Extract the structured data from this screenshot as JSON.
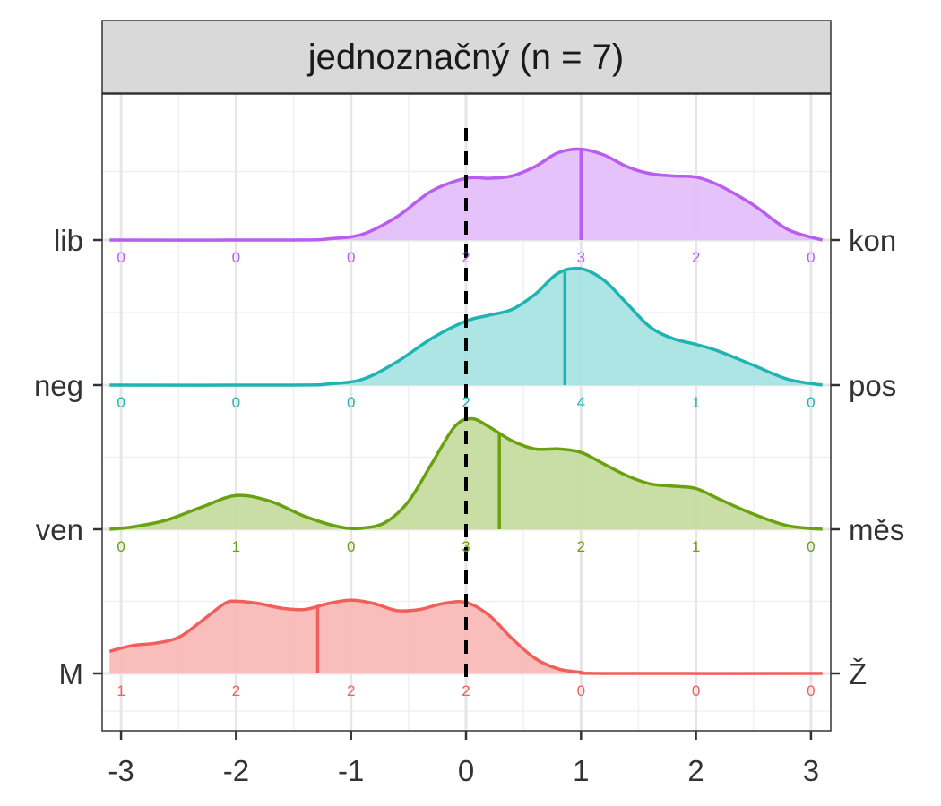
{
  "chart_data": {
    "type": "ridgeline",
    "facet_title": "jednoznačný (n = 7)",
    "xlim": [
      -3,
      3
    ],
    "x_ticks": [
      -3,
      -2,
      -1,
      0,
      1,
      2,
      3
    ],
    "x_tick_labels": [
      "-3",
      "-2",
      "-1",
      "0",
      "1",
      "2",
      "3"
    ],
    "reference_line_x": 0,
    "reference_line_style": "dashed black",
    "grid": true,
    "series": [
      {
        "left_label": "M",
        "right_label": "Ž",
        "color": "#F05F5C",
        "fill": "#F8B6B4",
        "mean": -1.29,
        "count_x": [
          -3,
          -2,
          -1,
          0,
          1,
          2,
          3
        ],
        "counts": [
          "1",
          "2",
          "2",
          "2",
          "0",
          "0",
          "0"
        ],
        "density": [
          [
            -3.1,
            0.19
          ],
          [
            -2.9,
            0.24
          ],
          [
            -2.7,
            0.26
          ],
          [
            -2.5,
            0.31
          ],
          [
            -2.3,
            0.45
          ],
          [
            -2.1,
            0.6
          ],
          [
            -2.0,
            0.62
          ],
          [
            -1.8,
            0.6
          ],
          [
            -1.6,
            0.56
          ],
          [
            -1.4,
            0.55
          ],
          [
            -1.2,
            0.6
          ],
          [
            -1.0,
            0.63
          ],
          [
            -0.8,
            0.6
          ],
          [
            -0.6,
            0.54
          ],
          [
            -0.4,
            0.55
          ],
          [
            -0.2,
            0.6
          ],
          [
            0.0,
            0.61
          ],
          [
            0.2,
            0.5
          ],
          [
            0.4,
            0.3
          ],
          [
            0.6,
            0.13
          ],
          [
            0.8,
            0.04
          ],
          [
            1.0,
            0.01
          ],
          [
            1.2,
            0.0
          ],
          [
            3.1,
            0.0
          ]
        ]
      },
      {
        "left_label": "ven",
        "right_label": "měs",
        "color": "#6AA10F",
        "fill": "#C3DA9A",
        "mean": 0.29,
        "count_x": [
          -3,
          -2,
          -1,
          0,
          1,
          2,
          3
        ],
        "counts": [
          "0",
          "1",
          "0",
          "3",
          "2",
          "1",
          "0"
        ],
        "density": [
          [
            -3.1,
            0.0
          ],
          [
            -2.9,
            0.02
          ],
          [
            -2.6,
            0.08
          ],
          [
            -2.3,
            0.19
          ],
          [
            -2.0,
            0.29
          ],
          [
            -1.7,
            0.24
          ],
          [
            -1.4,
            0.11
          ],
          [
            -1.1,
            0.02
          ],
          [
            -0.9,
            0.01
          ],
          [
            -0.7,
            0.06
          ],
          [
            -0.5,
            0.24
          ],
          [
            -0.3,
            0.56
          ],
          [
            -0.1,
            0.88
          ],
          [
            0.05,
            0.95
          ],
          [
            0.2,
            0.88
          ],
          [
            0.4,
            0.76
          ],
          [
            0.6,
            0.69
          ],
          [
            0.8,
            0.69
          ],
          [
            1.0,
            0.66
          ],
          [
            1.2,
            0.56
          ],
          [
            1.4,
            0.46
          ],
          [
            1.6,
            0.39
          ],
          [
            1.8,
            0.37
          ],
          [
            2.0,
            0.35
          ],
          [
            2.2,
            0.26
          ],
          [
            2.5,
            0.13
          ],
          [
            2.8,
            0.03
          ],
          [
            3.1,
            0.0
          ]
        ]
      },
      {
        "left_label": "neg",
        "right_label": "pos",
        "color": "#1FB4B4",
        "fill": "#A4E1E1",
        "mean": 0.86,
        "count_x": [
          -3,
          -2,
          -1,
          0,
          1,
          2,
          3
        ],
        "counts": [
          "0",
          "0",
          "0",
          "2",
          "4",
          "1",
          "0"
        ],
        "density": [
          [
            -3.1,
            0.0
          ],
          [
            -1.5,
            0.0
          ],
          [
            -1.2,
            0.01
          ],
          [
            -0.9,
            0.05
          ],
          [
            -0.6,
            0.2
          ],
          [
            -0.3,
            0.4
          ],
          [
            0.0,
            0.55
          ],
          [
            0.2,
            0.6
          ],
          [
            0.4,
            0.65
          ],
          [
            0.6,
            0.78
          ],
          [
            0.8,
            0.96
          ],
          [
            1.0,
            1.0
          ],
          [
            1.2,
            0.9
          ],
          [
            1.4,
            0.7
          ],
          [
            1.6,
            0.5
          ],
          [
            1.8,
            0.4
          ],
          [
            2.0,
            0.35
          ],
          [
            2.2,
            0.29
          ],
          [
            2.5,
            0.17
          ],
          [
            2.8,
            0.05
          ],
          [
            3.1,
            0.0
          ]
        ]
      },
      {
        "left_label": "lib",
        "right_label": "kon",
        "color": "#B95CF0",
        "fill": "#E2BDF9",
        "mean": 1.0,
        "count_x": [
          -3,
          -2,
          -1,
          0,
          1,
          2,
          3
        ],
        "counts": [
          "0",
          "0",
          "0",
          "2",
          "3",
          "2",
          "0"
        ],
        "density": [
          [
            -3.1,
            0.0
          ],
          [
            -1.5,
            0.0
          ],
          [
            -1.2,
            0.01
          ],
          [
            -0.9,
            0.05
          ],
          [
            -0.6,
            0.2
          ],
          [
            -0.3,
            0.42
          ],
          [
            0.0,
            0.53
          ],
          [
            0.2,
            0.53
          ],
          [
            0.4,
            0.55
          ],
          [
            0.6,
            0.63
          ],
          [
            0.8,
            0.75
          ],
          [
            1.0,
            0.78
          ],
          [
            1.2,
            0.73
          ],
          [
            1.4,
            0.63
          ],
          [
            1.6,
            0.57
          ],
          [
            1.8,
            0.55
          ],
          [
            2.0,
            0.54
          ],
          [
            2.2,
            0.47
          ],
          [
            2.5,
            0.3
          ],
          [
            2.8,
            0.09
          ],
          [
            3.1,
            0.0
          ]
        ]
      }
    ]
  }
}
